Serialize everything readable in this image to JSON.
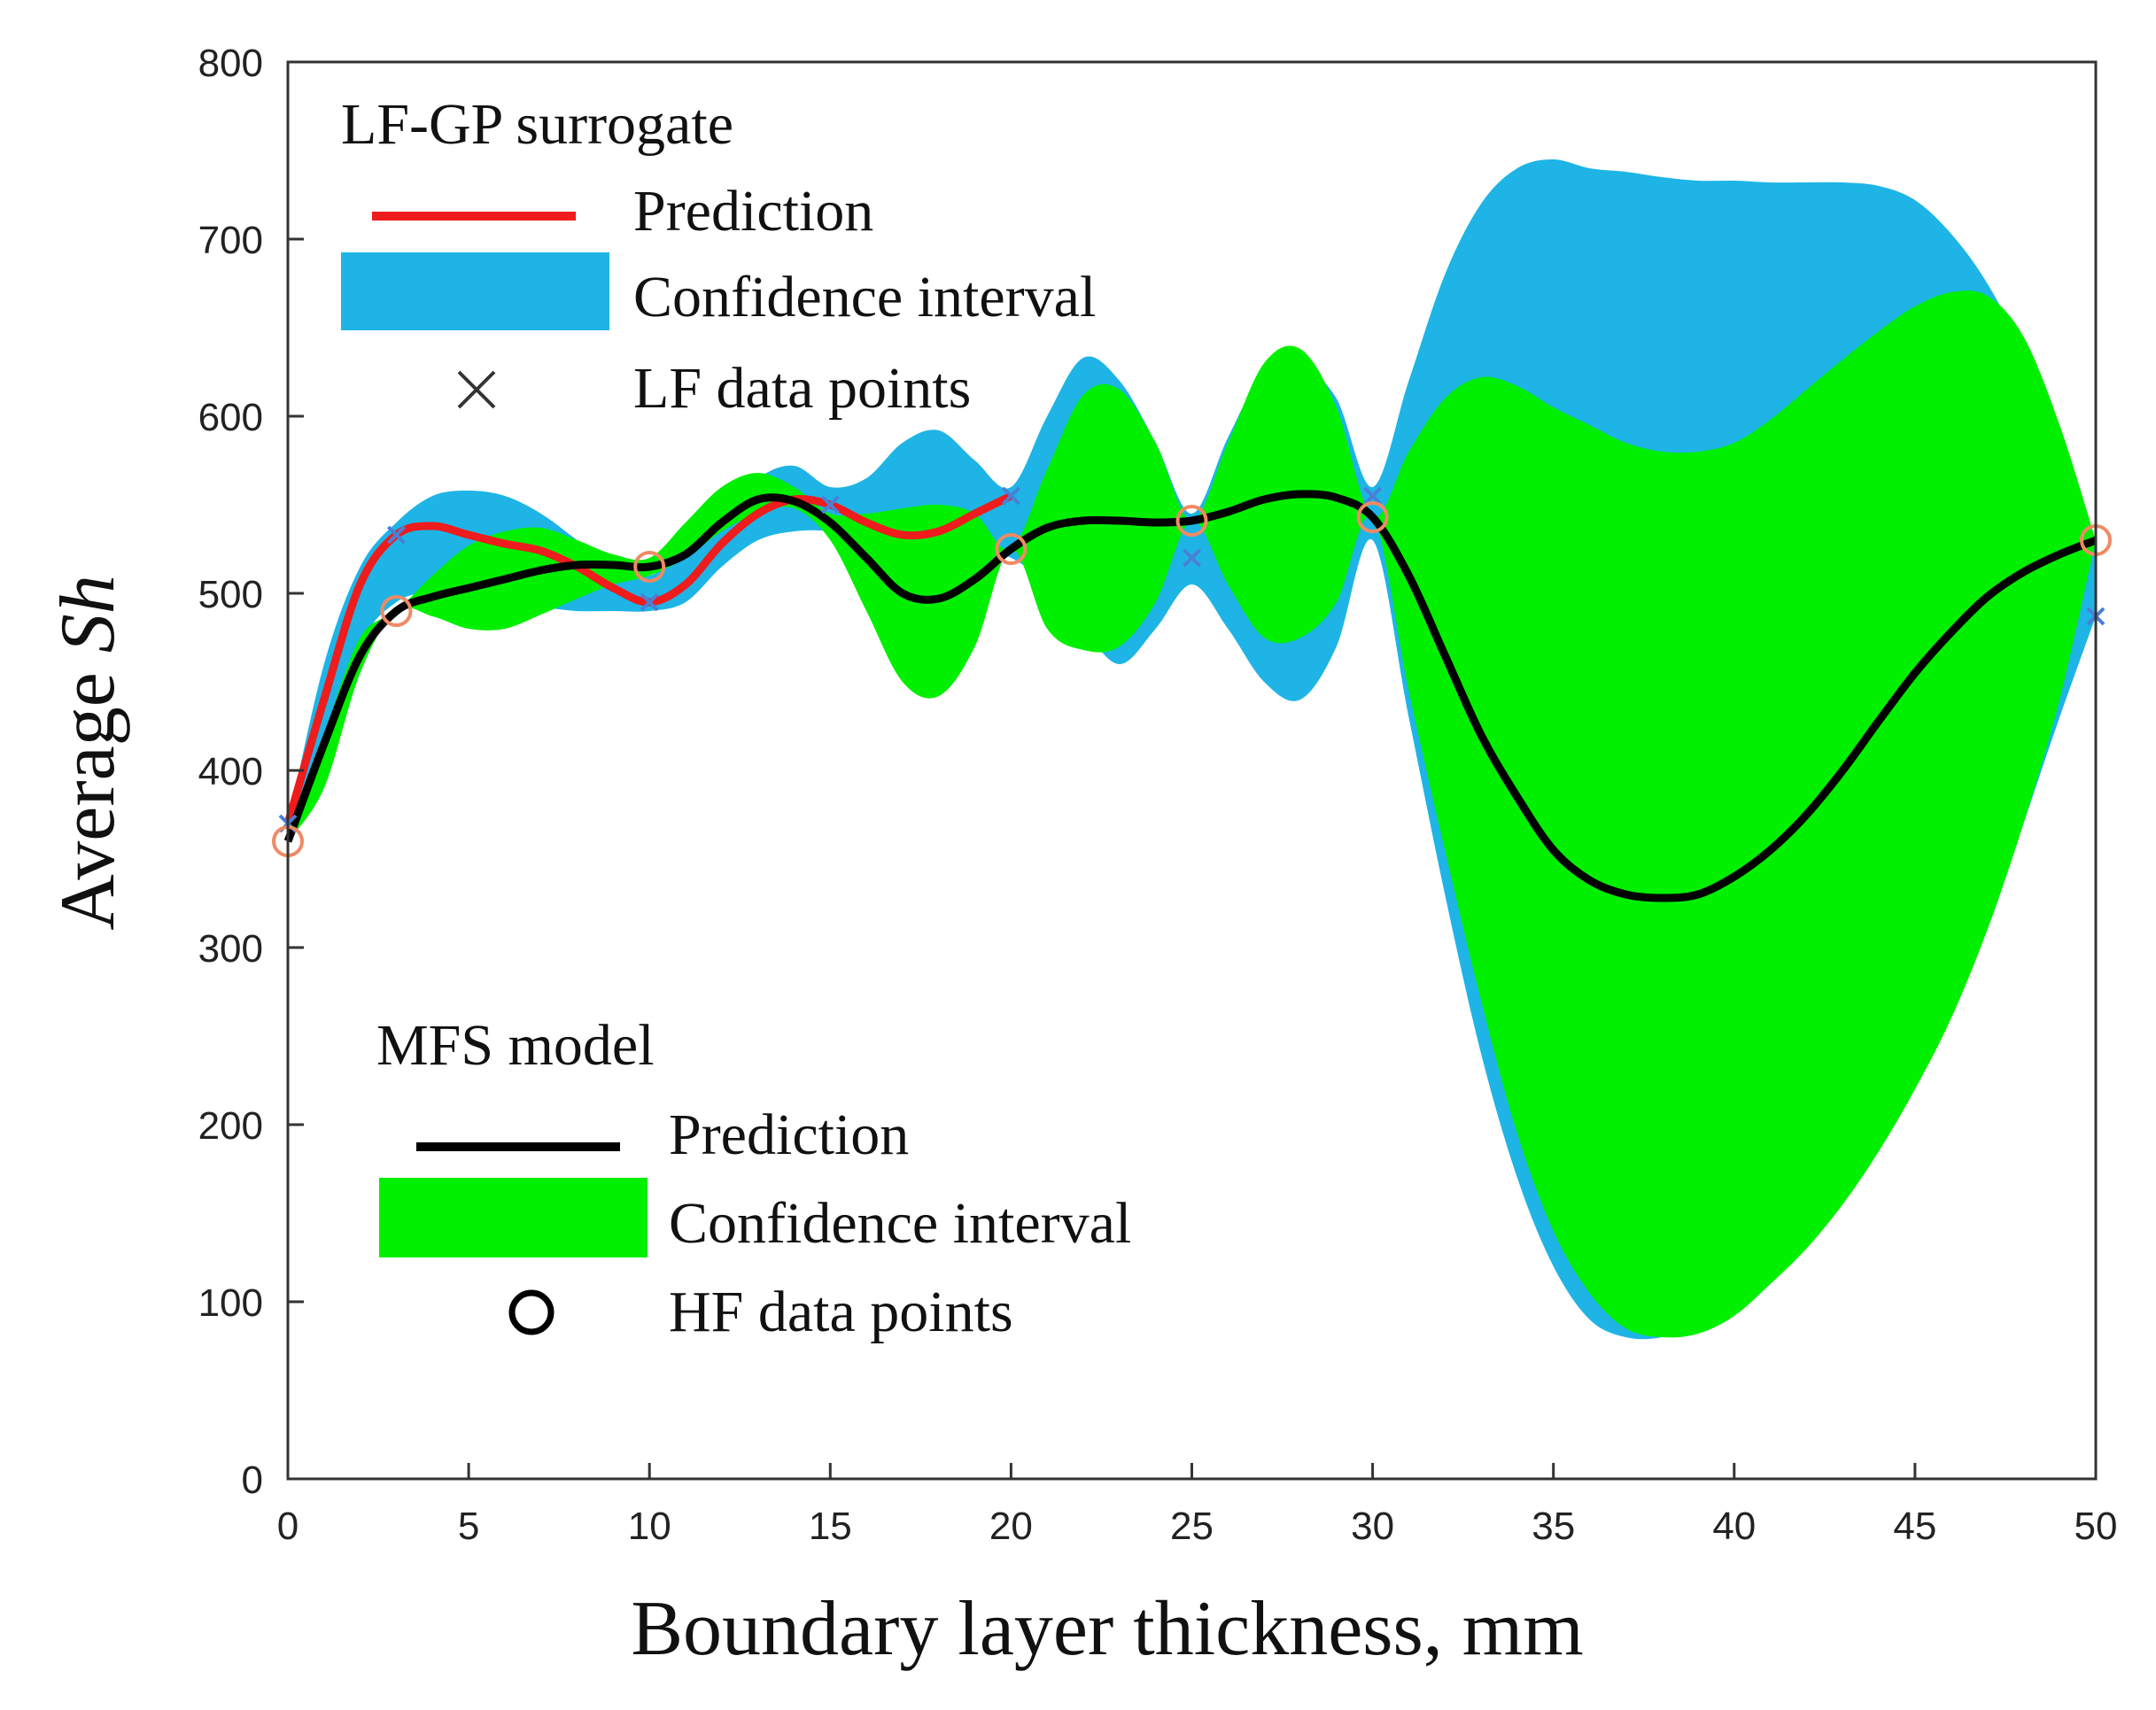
{
  "colors": {
    "lf_prediction": "#ee1c1c",
    "lf_confidence": "#1eb4e6",
    "lf_points": "#4a7fd6",
    "mfs_prediction": "#000000",
    "mfs_confidence": "#00f000",
    "hf_points": "#f08a64"
  },
  "chart_data": {
    "type": "line",
    "xlabel": "Boundary layer thickness, mm",
    "ylabel_main": "Average ",
    "ylabel_italic": "Sh",
    "xlim": [
      0,
      50
    ],
    "ylim": [
      0,
      800
    ],
    "grid": false,
    "x_ticks": [
      "0",
      "5",
      "10",
      "15",
      "20",
      "25",
      "30",
      "35",
      "40",
      "45",
      "50"
    ],
    "y_ticks": [
      "0",
      "100",
      "200",
      "300",
      "400",
      "500",
      "600",
      "700",
      "800"
    ],
    "legend_lf": {
      "title": "LF-GP surrogate",
      "items": [
        "Prediction",
        "Confidence interval",
        "LF data points"
      ],
      "placement": "top-left"
    },
    "legend_mfs": {
      "title": "MFS model",
      "items": [
        "Prediction",
        "Confidence interval",
        "HF data points"
      ],
      "placement": "bottom-left"
    },
    "lf_data_points": [
      [
        0,
        370
      ],
      [
        3,
        533
      ],
      [
        10,
        495
      ],
      [
        15,
        550
      ],
      [
        20,
        555
      ],
      [
        25,
        520
      ],
      [
        30,
        555
      ],
      [
        50,
        487
      ]
    ],
    "hf_data_points": [
      [
        0,
        360
      ],
      [
        3,
        490
      ],
      [
        10,
        515
      ],
      [
        20,
        525
      ],
      [
        25,
        541
      ],
      [
        30,
        543
      ],
      [
        50,
        530
      ]
    ],
    "lf_confidence_upper": [
      [
        0,
        370
      ],
      [
        1,
        460
      ],
      [
        2,
        515
      ],
      [
        3,
        540
      ],
      [
        4,
        555
      ],
      [
        5,
        558
      ],
      [
        6,
        555
      ],
      [
        7,
        545
      ],
      [
        8,
        530
      ],
      [
        9,
        515
      ],
      [
        10,
        510
      ],
      [
        11,
        525
      ],
      [
        12,
        545
      ],
      [
        13,
        565
      ],
      [
        14,
        572
      ],
      [
        15,
        560
      ],
      [
        16,
        565
      ],
      [
        17,
        585
      ],
      [
        18,
        592
      ],
      [
        19,
        575
      ],
      [
        20,
        560
      ],
      [
        21,
        600
      ],
      [
        22,
        633
      ],
      [
        23,
        620
      ],
      [
        24,
        585
      ],
      [
        25,
        545
      ],
      [
        26,
        588
      ],
      [
        27,
        625
      ],
      [
        28,
        628
      ],
      [
        29,
        610
      ],
      [
        30,
        560
      ],
      [
        31,
        620
      ],
      [
        32,
        680
      ],
      [
        33,
        720
      ],
      [
        34,
        740
      ],
      [
        35,
        745
      ],
      [
        36,
        740
      ],
      [
        37,
        738
      ],
      [
        38,
        735
      ],
      [
        39,
        733
      ],
      [
        40,
        733
      ],
      [
        41,
        732
      ],
      [
        42,
        732
      ],
      [
        43,
        732
      ],
      [
        44,
        730
      ],
      [
        45,
        722
      ],
      [
        46,
        703
      ],
      [
        47,
        675
      ],
      [
        48,
        635
      ],
      [
        49,
        580
      ],
      [
        50,
        530
      ]
    ],
    "lf_confidence_lower": [
      [
        0,
        370
      ],
      [
        1,
        400
      ],
      [
        2,
        470
      ],
      [
        3,
        495
      ],
      [
        4,
        500
      ],
      [
        5,
        495
      ],
      [
        6,
        492
      ],
      [
        7,
        492
      ],
      [
        8,
        490
      ],
      [
        9,
        490
      ],
      [
        10,
        490
      ],
      [
        11,
        495
      ],
      [
        12,
        515
      ],
      [
        13,
        530
      ],
      [
        14,
        535
      ],
      [
        15,
        535
      ],
      [
        16,
        530
      ],
      [
        17,
        520
      ],
      [
        18,
        515
      ],
      [
        19,
        525
      ],
      [
        20,
        520
      ],
      [
        21,
        505
      ],
      [
        22,
        480
      ],
      [
        23,
        460
      ],
      [
        24,
        480
      ],
      [
        25,
        505
      ],
      [
        26,
        480
      ],
      [
        27,
        450
      ],
      [
        28,
        440
      ],
      [
        29,
        470
      ],
      [
        30,
        530
      ],
      [
        31,
        430
      ],
      [
        32,
        330
      ],
      [
        33,
        240
      ],
      [
        34,
        170
      ],
      [
        35,
        120
      ],
      [
        36,
        90
      ],
      [
        37,
        80
      ],
      [
        38,
        80
      ],
      [
        39,
        88
      ],
      [
        40,
        105
      ],
      [
        41,
        125
      ],
      [
        42,
        145
      ],
      [
        43,
        170
      ],
      [
        44,
        200
      ],
      [
        45,
        230
      ],
      [
        46,
        265
      ],
      [
        47,
        310
      ],
      [
        48,
        370
      ],
      [
        49,
        430
      ],
      [
        50,
        487
      ]
    ],
    "lf_prediction": [
      [
        0,
        370
      ],
      [
        1,
        440
      ],
      [
        2,
        505
      ],
      [
        3,
        533
      ],
      [
        4,
        538
      ],
      [
        5,
        533
      ],
      [
        6,
        528
      ],
      [
        7,
        524
      ],
      [
        8,
        515
      ],
      [
        9,
        503
      ],
      [
        10,
        495
      ],
      [
        11,
        505
      ],
      [
        12,
        528
      ],
      [
        13,
        545
      ],
      [
        14,
        553
      ],
      [
        15,
        550
      ],
      [
        16,
        540
      ],
      [
        17,
        533
      ],
      [
        18,
        535
      ],
      [
        19,
        545
      ],
      [
        20,
        555
      ]
    ],
    "mfs_confidence_upper": [
      [
        0,
        360
      ],
      [
        1,
        420
      ],
      [
        2,
        475
      ],
      [
        3,
        490
      ],
      [
        4,
        510
      ],
      [
        5,
        527
      ],
      [
        6,
        535
      ],
      [
        7,
        537
      ],
      [
        8,
        530
      ],
      [
        9,
        522
      ],
      [
        10,
        520
      ],
      [
        11,
        540
      ],
      [
        12,
        560
      ],
      [
        13,
        568
      ],
      [
        14,
        560
      ],
      [
        15,
        545
      ],
      [
        16,
        545
      ],
      [
        17,
        548
      ],
      [
        18,
        550
      ],
      [
        19,
        545
      ],
      [
        20,
        525
      ],
      [
        21,
        570
      ],
      [
        22,
        612
      ],
      [
        23,
        615
      ],
      [
        24,
        585
      ],
      [
        25,
        541
      ],
      [
        26,
        585
      ],
      [
        27,
        630
      ],
      [
        28,
        638
      ],
      [
        29,
        605
      ],
      [
        30,
        543
      ],
      [
        31,
        580
      ],
      [
        32,
        610
      ],
      [
        33,
        622
      ],
      [
        34,
        617
      ],
      [
        35,
        605
      ],
      [
        36,
        595
      ],
      [
        37,
        585
      ],
      [
        38,
        580
      ],
      [
        39,
        580
      ],
      [
        40,
        585
      ],
      [
        41,
        598
      ],
      [
        42,
        615
      ],
      [
        43,
        632
      ],
      [
        44,
        648
      ],
      [
        45,
        662
      ],
      [
        46,
        670
      ],
      [
        47,
        668
      ],
      [
        48,
        645
      ],
      [
        49,
        595
      ],
      [
        50,
        530
      ]
    ],
    "mfs_confidence_lower": [
      [
        0,
        360
      ],
      [
        1,
        390
      ],
      [
        2,
        455
      ],
      [
        3,
        490
      ],
      [
        4,
        487
      ],
      [
        5,
        480
      ],
      [
        6,
        480
      ],
      [
        7,
        488
      ],
      [
        8,
        497
      ],
      [
        9,
        505
      ],
      [
        10,
        510
      ],
      [
        11,
        520
      ],
      [
        12,
        535
      ],
      [
        13,
        545
      ],
      [
        14,
        548
      ],
      [
        15,
        530
      ],
      [
        16,
        490
      ],
      [
        17,
        450
      ],
      [
        18,
        442
      ],
      [
        19,
        470
      ],
      [
        20,
        525
      ],
      [
        21,
        480
      ],
      [
        22,
        468
      ],
      [
        23,
        470
      ],
      [
        24,
        495
      ],
      [
        25,
        541
      ],
      [
        26,
        505
      ],
      [
        27,
        475
      ],
      [
        28,
        475
      ],
      [
        29,
        495
      ],
      [
        30,
        543
      ],
      [
        31,
        445
      ],
      [
        32,
        355
      ],
      [
        33,
        270
      ],
      [
        34,
        195
      ],
      [
        35,
        140
      ],
      [
        36,
        105
      ],
      [
        37,
        85
      ],
      [
        38,
        80
      ],
      [
        39,
        82
      ],
      [
        40,
        92
      ],
      [
        41,
        110
      ],
      [
        42,
        130
      ],
      [
        43,
        155
      ],
      [
        44,
        185
      ],
      [
        45,
        220
      ],
      [
        46,
        260
      ],
      [
        47,
        310
      ],
      [
        48,
        370
      ],
      [
        49,
        440
      ],
      [
        50,
        530
      ]
    ],
    "mfs_prediction": [
      [
        0,
        360
      ],
      [
        1,
        415
      ],
      [
        2,
        465
      ],
      [
        3,
        490
      ],
      [
        4,
        498
      ],
      [
        5,
        503
      ],
      [
        6,
        508
      ],
      [
        7,
        513
      ],
      [
        8,
        516
      ],
      [
        9,
        516
      ],
      [
        10,
        515
      ],
      [
        11,
        522
      ],
      [
        12,
        540
      ],
      [
        13,
        553
      ],
      [
        14,
        552
      ],
      [
        15,
        540
      ],
      [
        16,
        520
      ],
      [
        17,
        500
      ],
      [
        18,
        497
      ],
      [
        19,
        508
      ],
      [
        20,
        525
      ],
      [
        21,
        537
      ],
      [
        22,
        541
      ],
      [
        23,
        541
      ],
      [
        24,
        540
      ],
      [
        25,
        541
      ],
      [
        26,
        546
      ],
      [
        27,
        553
      ],
      [
        28,
        556
      ],
      [
        29,
        554
      ],
      [
        30,
        543
      ],
      [
        31,
        510
      ],
      [
        32,
        465
      ],
      [
        33,
        420
      ],
      [
        34,
        385
      ],
      [
        35,
        355
      ],
      [
        36,
        338
      ],
      [
        37,
        330
      ],
      [
        38,
        328
      ],
      [
        39,
        330
      ],
      [
        40,
        340
      ],
      [
        41,
        355
      ],
      [
        42,
        375
      ],
      [
        43,
        400
      ],
      [
        44,
        428
      ],
      [
        45,
        455
      ],
      [
        46,
        478
      ],
      [
        47,
        498
      ],
      [
        48,
        512
      ],
      [
        49,
        522
      ],
      [
        50,
        530
      ]
    ]
  }
}
